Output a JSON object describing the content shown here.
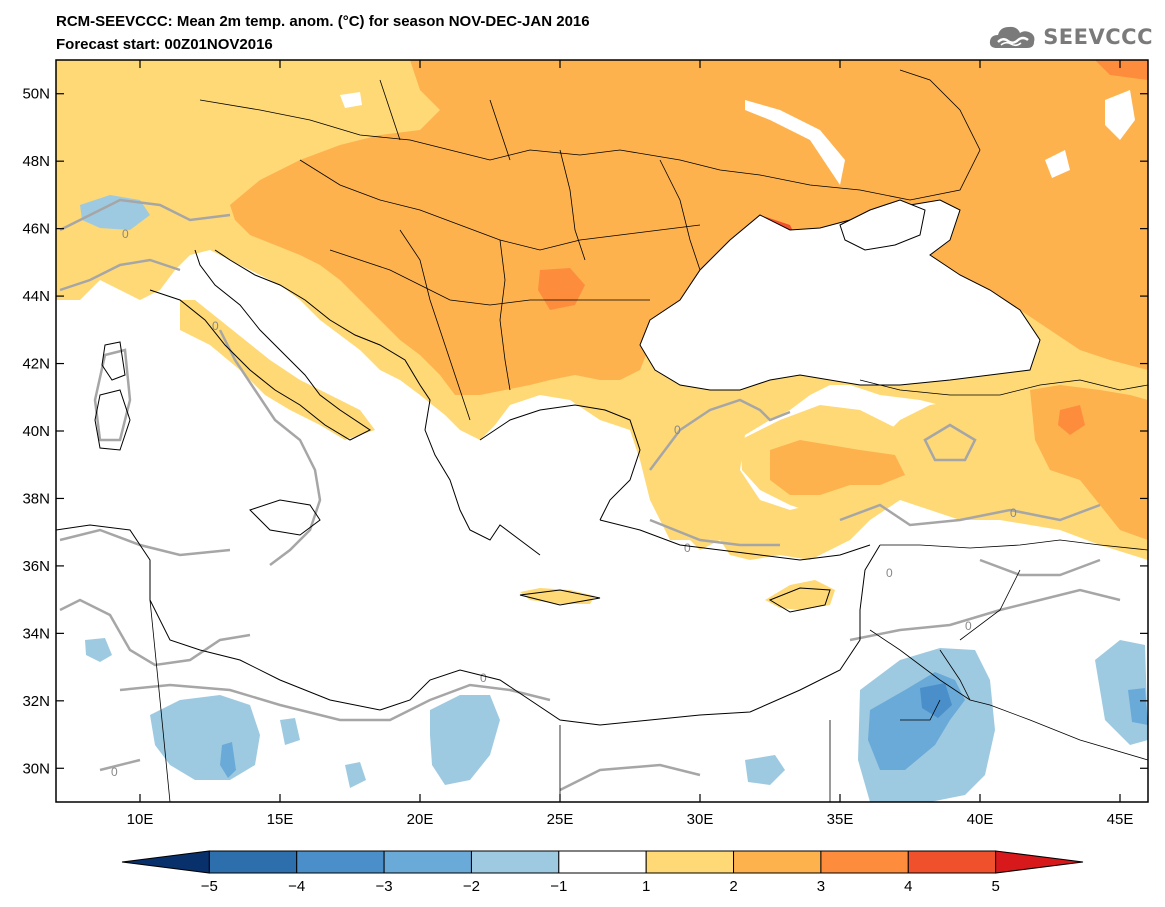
{
  "header": {
    "title_line1": "RCM-SEEVCCC: Mean 2m temp. anom. (°C) for season NOV-DEC-JAN 2016",
    "title_line2": "Forecast start: 00Z01NOV2016",
    "logo_text": "SEEVCCC"
  },
  "chart_data": {
    "type": "heatmap",
    "title": "RCM-SEEVCCC: Mean 2m temp. anom. (°C) for season NOV-DEC-JAN 2016",
    "subtitle": "Forecast start: 00Z01NOV2016",
    "x_ticks": [
      "10E",
      "15E",
      "20E",
      "25E",
      "30E",
      "35E",
      "40E",
      "45E"
    ],
    "x_values": [
      10,
      15,
      20,
      25,
      30,
      35,
      40,
      45
    ],
    "y_ticks": [
      "30N",
      "32N",
      "34N",
      "36N",
      "38N",
      "40N",
      "42N",
      "44N",
      "46N",
      "48N",
      "50N"
    ],
    "y_values": [
      30,
      32,
      34,
      36,
      38,
      40,
      42,
      44,
      46,
      48,
      50
    ],
    "xlim": [
      7,
      46
    ],
    "ylim": [
      29,
      51
    ],
    "contour_labels": [
      "0",
      "0",
      "0",
      "0",
      "0",
      "0",
      "0",
      "0",
      "0"
    ],
    "colorbar": {
      "labels": [
        "−5",
        "−4",
        "−3",
        "−2",
        "−1",
        "1",
        "2",
        "3",
        "4",
        "5"
      ],
      "levels": [
        -5,
        -4,
        -3,
        -2,
        -1,
        1,
        2,
        3,
        4,
        5
      ],
      "colors": [
        "#08306b",
        "#2d6fad",
        "#4a8fca",
        "#6aaad8",
        "#9ecae1",
        "#ffffff",
        "#fed976",
        "#fdb24e",
        "#fd8d3c",
        "#f0512c",
        "#d7191c"
      ]
    },
    "colors": {
      "sea": "#ffffff",
      "warm1": "#fed976",
      "warm2": "#fdb24e",
      "warm3": "#fd8d3c",
      "warm4": "#f0512c",
      "cool1": "#9ecae1",
      "cool2": "#6aaad8",
      "cool3": "#4a8fca",
      "contour": "#a6a6a6",
      "border": "#000000"
    }
  }
}
